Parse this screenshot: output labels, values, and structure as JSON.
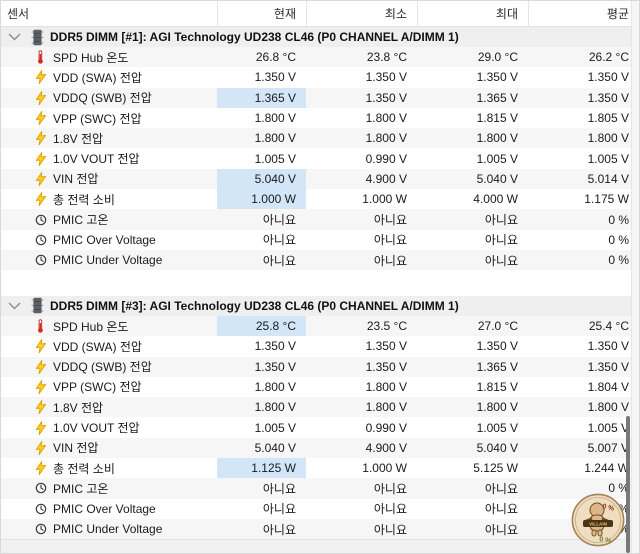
{
  "columns": {
    "sensor": "센서",
    "current": "현재",
    "min": "최소",
    "max": "최대",
    "avg": "평균"
  },
  "sections": [
    {
      "title": "DDR5 DIMM [#1]: AGI Technology UD238 CL46 (P0 CHANNEL A/DIMM 1)",
      "rows": [
        {
          "icon": "thermometer-icon",
          "label": "SPD Hub 온도",
          "current": "26.8 °C",
          "min": "23.8 °C",
          "max": "29.0 °C",
          "avg": "26.2 °C",
          "hl": false
        },
        {
          "icon": "voltage-bolt-icon",
          "label": "VDD (SWA) 전압",
          "current": "1.350 V",
          "min": "1.350 V",
          "max": "1.350 V",
          "avg": "1.350 V",
          "hl": false
        },
        {
          "icon": "voltage-bolt-icon",
          "label": "VDDQ (SWB) 전압",
          "current": "1.365 V",
          "min": "1.350 V",
          "max": "1.365 V",
          "avg": "1.350 V",
          "hl": true
        },
        {
          "icon": "voltage-bolt-icon",
          "label": "VPP (SWC) 전압",
          "current": "1.800 V",
          "min": "1.800 V",
          "max": "1.815 V",
          "avg": "1.805 V",
          "hl": false
        },
        {
          "icon": "voltage-bolt-icon",
          "label": "1.8V 전압",
          "current": "1.800 V",
          "min": "1.800 V",
          "max": "1.800 V",
          "avg": "1.800 V",
          "hl": false
        },
        {
          "icon": "voltage-bolt-icon",
          "label": "1.0V VOUT 전압",
          "current": "1.005 V",
          "min": "0.990 V",
          "max": "1.005 V",
          "avg": "1.005 V",
          "hl": false
        },
        {
          "icon": "voltage-bolt-icon",
          "label": "VIN 전압",
          "current": "5.040 V",
          "min": "4.900 V",
          "max": "5.040 V",
          "avg": "5.014 V",
          "hl": true
        },
        {
          "icon": "voltage-bolt-icon",
          "label": "총 전력 소비",
          "current": "1.000 W",
          "min": "1.000 W",
          "max": "4.000 W",
          "avg": "1.175 W",
          "hl": true
        },
        {
          "icon": "clock-icon",
          "label": "PMIC 고온",
          "current": "아니요",
          "min": "아니요",
          "max": "아니요",
          "avg": "0 %",
          "hl": false
        },
        {
          "icon": "clock-icon",
          "label": "PMIC Over Voltage",
          "current": "아니요",
          "min": "아니요",
          "max": "아니요",
          "avg": "0 %",
          "hl": false
        },
        {
          "icon": "clock-icon",
          "label": "PMIC Under Voltage",
          "current": "아니요",
          "min": "아니요",
          "max": "아니요",
          "avg": "0 %",
          "hl": false
        }
      ]
    },
    {
      "title": "DDR5 DIMM [#3]: AGI Technology UD238 CL46 (P0 CHANNEL A/DIMM 1)",
      "rows": [
        {
          "icon": "thermometer-icon",
          "label": "SPD Hub 온도",
          "current": "25.8 °C",
          "min": "23.5 °C",
          "max": "27.0 °C",
          "avg": "25.4 °C",
          "hl": true
        },
        {
          "icon": "voltage-bolt-icon",
          "label": "VDD (SWA) 전압",
          "current": "1.350 V",
          "min": "1.350 V",
          "max": "1.350 V",
          "avg": "1.350 V",
          "hl": false
        },
        {
          "icon": "voltage-bolt-icon",
          "label": "VDDQ (SWB) 전압",
          "current": "1.350 V",
          "min": "1.350 V",
          "max": "1.365 V",
          "avg": "1.350 V",
          "hl": false
        },
        {
          "icon": "voltage-bolt-icon",
          "label": "VPP (SWC) 전압",
          "current": "1.800 V",
          "min": "1.800 V",
          "max": "1.815 V",
          "avg": "1.804 V",
          "hl": false
        },
        {
          "icon": "voltage-bolt-icon",
          "label": "1.8V 전압",
          "current": "1.800 V",
          "min": "1.800 V",
          "max": "1.800 V",
          "avg": "1.800 V",
          "hl": false
        },
        {
          "icon": "voltage-bolt-icon",
          "label": "1.0V VOUT 전압",
          "current": "1.005 V",
          "min": "0.990 V",
          "max": "1.005 V",
          "avg": "1.005 V",
          "hl": false
        },
        {
          "icon": "voltage-bolt-icon",
          "label": "VIN 전압",
          "current": "5.040 V",
          "min": "4.900 V",
          "max": "5.040 V",
          "avg": "5.007 V",
          "hl": false
        },
        {
          "icon": "voltage-bolt-icon",
          "label": "총 전력 소비",
          "current": "1.125 W",
          "min": "1.000 W",
          "max": "5.125 W",
          "avg": "1.244 W",
          "hl": true
        },
        {
          "icon": "clock-icon",
          "label": "PMIC 고온",
          "current": "아니요",
          "min": "아니요",
          "max": "아니요",
          "avg": "0 %",
          "hl": false
        },
        {
          "icon": "clock-icon",
          "label": "PMIC Over Voltage",
          "current": "아니요",
          "min": "아니요",
          "max": "아니요",
          "avg": "0 %",
          "hl": false
        },
        {
          "icon": "clock-icon",
          "label": "PMIC Under Voltage",
          "current": "아니요",
          "min": "아니요",
          "max": "아니요",
          "avg": "0 %",
          "hl": false
        }
      ]
    }
  ],
  "watermark": {
    "text_top": "0 %",
    "banner": "VILLAIN",
    "text_bottom": "0 %"
  },
  "colors": {
    "highlight": "#d2e6f8",
    "section_bg": "#efefef",
    "stripe": "#f6f6f6",
    "stamp_fill": "#eeddbe",
    "stamp_border": "#a3835a",
    "bolt": "#ffd21e",
    "thermo": "#d42b1e"
  }
}
